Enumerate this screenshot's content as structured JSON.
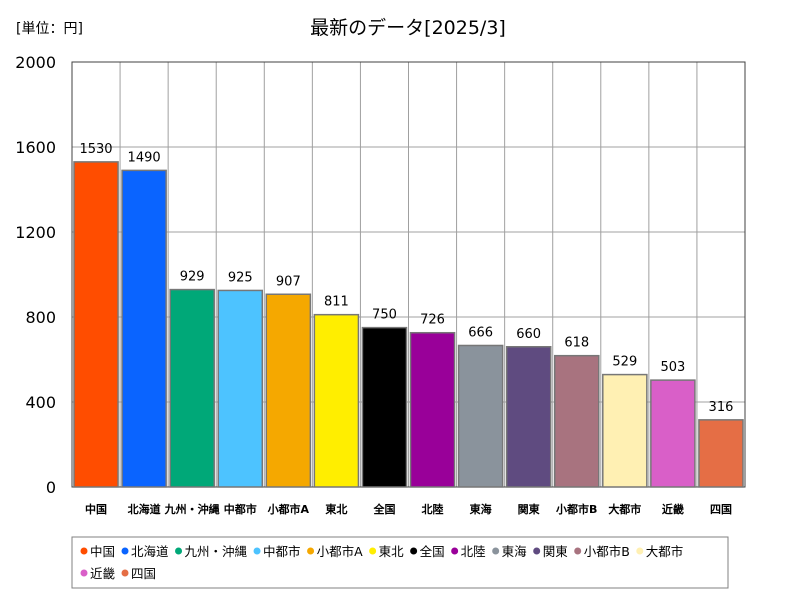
{
  "chart_data": {
    "type": "bar",
    "title": "最新のデータ[2025/3]",
    "unit_label": "[単位：円]",
    "ylim": [
      0,
      2000
    ],
    "yticks": [
      0,
      400,
      800,
      1200,
      1600,
      2000
    ],
    "grid": true,
    "legend_position": "bottom",
    "categories": [
      "中国",
      "北海道",
      "九州・沖縄",
      "中都市",
      "小都市A",
      "東北",
      "全国",
      "北陸",
      "東海",
      "関東",
      "小都市B",
      "大都市",
      "近畿",
      "四国"
    ],
    "values": [
      1530,
      1490,
      929,
      925,
      907,
      811,
      750,
      726,
      666,
      660,
      618,
      529,
      503,
      316
    ],
    "colors": [
      "#ff4d00",
      "#0a64ff",
      "#00a878",
      "#4dc3ff",
      "#f5a800",
      "#ffee00",
      "#000000",
      "#990099",
      "#8a939c",
      "#5f4b80",
      "#a8737f",
      "#fff0b3",
      "#d95fc8",
      "#e56e45"
    ]
  }
}
